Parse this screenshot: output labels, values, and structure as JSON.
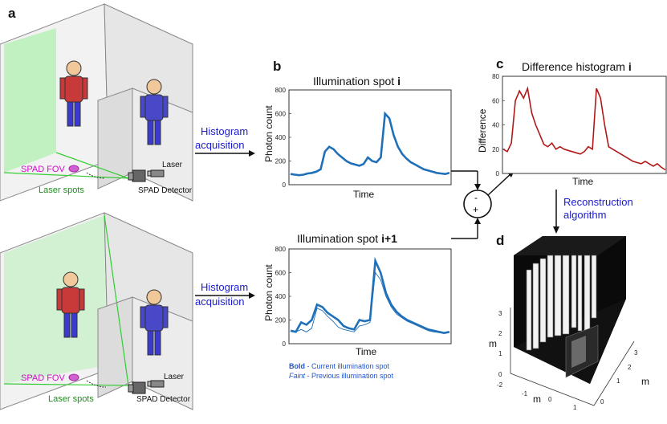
{
  "labels": {
    "panel_a": "a",
    "panel_b": "b",
    "panel_c": "c",
    "panel_d": "d",
    "spad_fov": "SPAD FOV",
    "laser_spots": "Laser spots",
    "laser": "Laser",
    "spad_detector": "SPAD Detector",
    "histogram_line1": "Histogram",
    "histogram_line2": "acquisition",
    "recon_line1": "Reconstruction",
    "recon_line2": "algorithm",
    "minus": "-",
    "plus": "+",
    "legend_bold_key": "Bold",
    "legend_bold_text": " - Current illumination spot",
    "legend_faint_key": "Faint",
    "legend_faint_text": " - Previous illumination spot"
  },
  "plots": {
    "top": {
      "title_main": "Illumination spot ",
      "title_bold": "i",
      "xlabel": "Time",
      "ylabel": "Photon count",
      "yticks": [
        "0",
        "200",
        "400",
        "600",
        "800"
      ]
    },
    "bottom": {
      "title_main": "Illumination spot ",
      "title_bold": "i+1",
      "xlabel": "Time",
      "ylabel": "Photon count",
      "yticks": [
        "0",
        "200",
        "400",
        "600",
        "800"
      ]
    },
    "diff": {
      "title_main": "Difference histogram ",
      "title_bold": "i",
      "xlabel": "Time",
      "ylabel": "Difference",
      "yticks": [
        "0",
        "20",
        "40",
        "60",
        "80"
      ]
    },
    "recon": {
      "zlabel": "m",
      "xlabel": "m",
      "ylabel": "m",
      "zticks": [
        "0",
        "1",
        "2",
        "3"
      ],
      "xticks": [
        "-2",
        "-1",
        "0",
        "1"
      ],
      "yticks": [
        "0",
        "1",
        "2",
        "3"
      ]
    }
  },
  "chart_data": [
    {
      "type": "line",
      "title": "Illumination spot i",
      "xlabel": "Time",
      "ylabel": "Photon count",
      "ylim": [
        0,
        800
      ],
      "series": [
        {
          "values": [
            90,
            85,
            80,
            85,
            95,
            100,
            110,
            130,
            280,
            320,
            300,
            260,
            230,
            200,
            180,
            170,
            160,
            175,
            230,
            200,
            190,
            230,
            600,
            560,
            420,
            320,
            260,
            220,
            190,
            170,
            150,
            130,
            120,
            110,
            100,
            95,
            90,
            100
          ]
        }
      ]
    },
    {
      "type": "line",
      "title": "Illumination spot i+1",
      "xlabel": "Time",
      "ylabel": "Photon count",
      "ylim": [
        0,
        800
      ],
      "series": [
        {
          "values": [
            110,
            100,
            180,
            160,
            200,
            330,
            310,
            260,
            230,
            200,
            150,
            130,
            120,
            200,
            190,
            200,
            700,
            600,
            430,
            330,
            270,
            230,
            200,
            180,
            160,
            140,
            120,
            110,
            100,
            90,
            100
          ]
        },
        {
          "values": [
            110,
            100,
            120,
            100,
            130,
            300,
            280,
            230,
            190,
            140,
            120,
            110,
            100,
            150,
            160,
            180,
            600,
            540,
            400,
            310,
            250,
            220,
            190,
            170,
            150,
            130,
            110,
            100,
            95,
            90,
            95
          ]
        }
      ]
    },
    {
      "type": "line",
      "title": "Difference histogram i",
      "xlabel": "Time",
      "ylabel": "Difference",
      "ylim": [
        0,
        80
      ],
      "series": [
        {
          "values": [
            20,
            18,
            25,
            60,
            68,
            62,
            70,
            50,
            40,
            32,
            24,
            22,
            25,
            20,
            22,
            20,
            19,
            18,
            17,
            16,
            18,
            22,
            20,
            70,
            62,
            40,
            22,
            20,
            18,
            16,
            14,
            12,
            10,
            9,
            8,
            10,
            8,
            6,
            8,
            5,
            3
          ]
        }
      ]
    },
    {
      "type": "other",
      "zlabel": "m",
      "xlabel": "m",
      "ylabel": "m",
      "zticks": [
        "0",
        "1",
        "2",
        "3"
      ],
      "xticks": [
        "-2",
        "-1",
        "0",
        "1"
      ],
      "yticks": [
        "0",
        "1",
        "2",
        "3"
      ]
    }
  ]
}
